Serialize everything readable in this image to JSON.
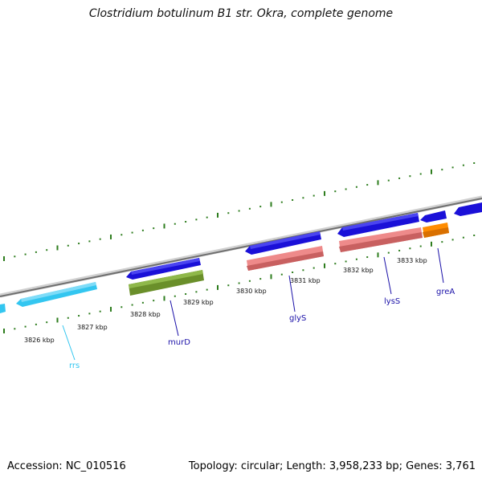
{
  "title": "Clostridium botulinum B1 str. Okra, complete genome",
  "footer": {
    "accession": "Accession: NC_010516",
    "summary": "Topology: circular; Length: 3,958,233 bp; Genes: 3,761"
  },
  "colors": {
    "backbone": "#8a8a8a",
    "ticks": "#2e7d1e",
    "rrna": "#33c6f0",
    "cds_forward": "#1a10d8",
    "cds_a": "#6a8f2a",
    "cds_b": "#ee8a8a",
    "cds_c": "#ff8c00",
    "label_blue": "#1a10a8",
    "label_rrs": "#33c6f0"
  },
  "kbp_labels": [
    "3826 kbp",
    "3827 kbp",
    "3828 kbp",
    "3829 kbp",
    "3830 kbp",
    "3831 kbp",
    "3832 kbp",
    "3833 kbp"
  ],
  "genes": [
    {
      "name": "rrs",
      "color_key": "label_rrs"
    },
    {
      "name": "murD",
      "color_key": "label_blue"
    },
    {
      "name": "glyS",
      "color_key": "label_blue"
    },
    {
      "name": "lysS",
      "color_key": "label_blue"
    },
    {
      "name": "greA",
      "color_key": "label_blue"
    }
  ]
}
